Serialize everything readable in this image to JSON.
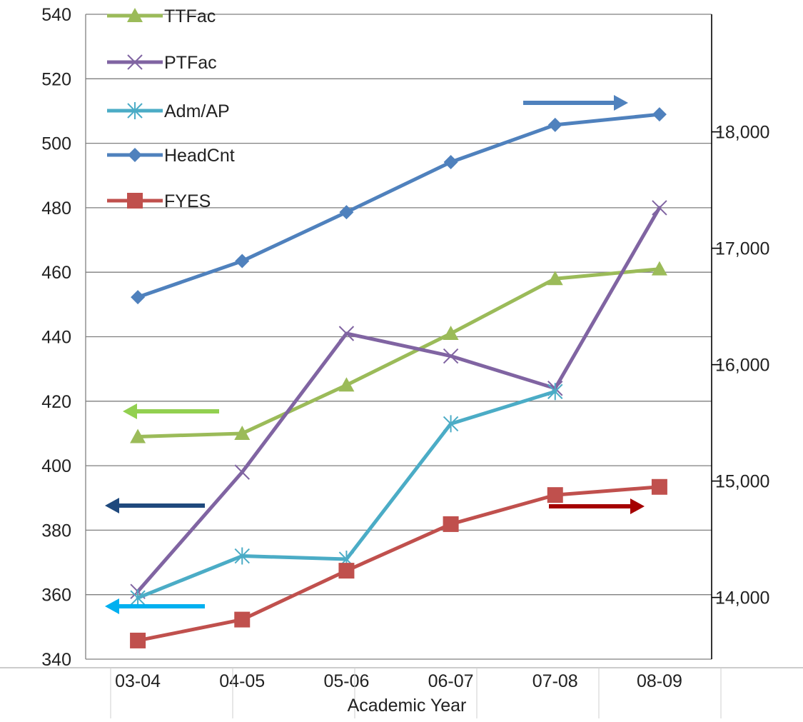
{
  "chart_data": {
    "type": "line",
    "title": "",
    "xlabel": "Academic Year",
    "categories": [
      "03-04",
      "04-05",
      "05-06",
      "06-07",
      "07-08",
      "08-09"
    ],
    "y_left": {
      "ylim": [
        340,
        540
      ],
      "ticks": [
        "340",
        "360",
        "380",
        "400",
        "420",
        "440",
        "460",
        "480",
        "500",
        "520",
        "540"
      ]
    },
    "y_right": {
      "ylim": [
        13470,
        19010
      ],
      "ticks": [
        "14,000",
        "15,000",
        "16,000",
        "17,000",
        "18,000"
      ],
      "tick_values": [
        14000,
        15000,
        16000,
        17000,
        18000
      ]
    },
    "grid": true,
    "legend_position": "top-left",
    "series": [
      {
        "name": "TTFac",
        "axis": "left",
        "color": "#9BBB59",
        "marker": "triangle",
        "values": [
          409,
          410,
          425,
          441,
          458,
          461
        ]
      },
      {
        "name": "PTFac",
        "axis": "left",
        "color": "#8064A2",
        "marker": "x",
        "values": [
          361,
          398,
          441,
          434,
          424,
          480
        ]
      },
      {
        "name": "Adm/AP",
        "axis": "left",
        "color": "#4BACC6",
        "marker": "star",
        "values": [
          359,
          372,
          371,
          413,
          423,
          null
        ]
      },
      {
        "name": "HeadCnt",
        "axis": "right",
        "color": "#4F81BD",
        "marker": "diamond",
        "values": [
          16580,
          16890,
          17310,
          17740,
          18060,
          18150
        ]
      },
      {
        "name": "FYES",
        "axis": "right",
        "color": "#C0504D",
        "marker": "square",
        "values": [
          13630,
          13810,
          14230,
          14630,
          14880,
          14950
        ]
      }
    ],
    "annotations": [
      {
        "type": "arrow",
        "direction": "right",
        "color": "#4F81BD",
        "refers_to": "HeadCnt"
      },
      {
        "type": "arrow",
        "direction": "right",
        "color": "#A50000",
        "refers_to": "FYES"
      },
      {
        "type": "arrow",
        "direction": "left",
        "color": "#92D050",
        "refers_to": "TTFac"
      },
      {
        "type": "arrow",
        "direction": "left",
        "color": "#1F497D",
        "refers_to": "PTFac"
      },
      {
        "type": "arrow",
        "direction": "left",
        "color": "#00B0F0",
        "refers_to": "Adm/AP"
      }
    ]
  }
}
